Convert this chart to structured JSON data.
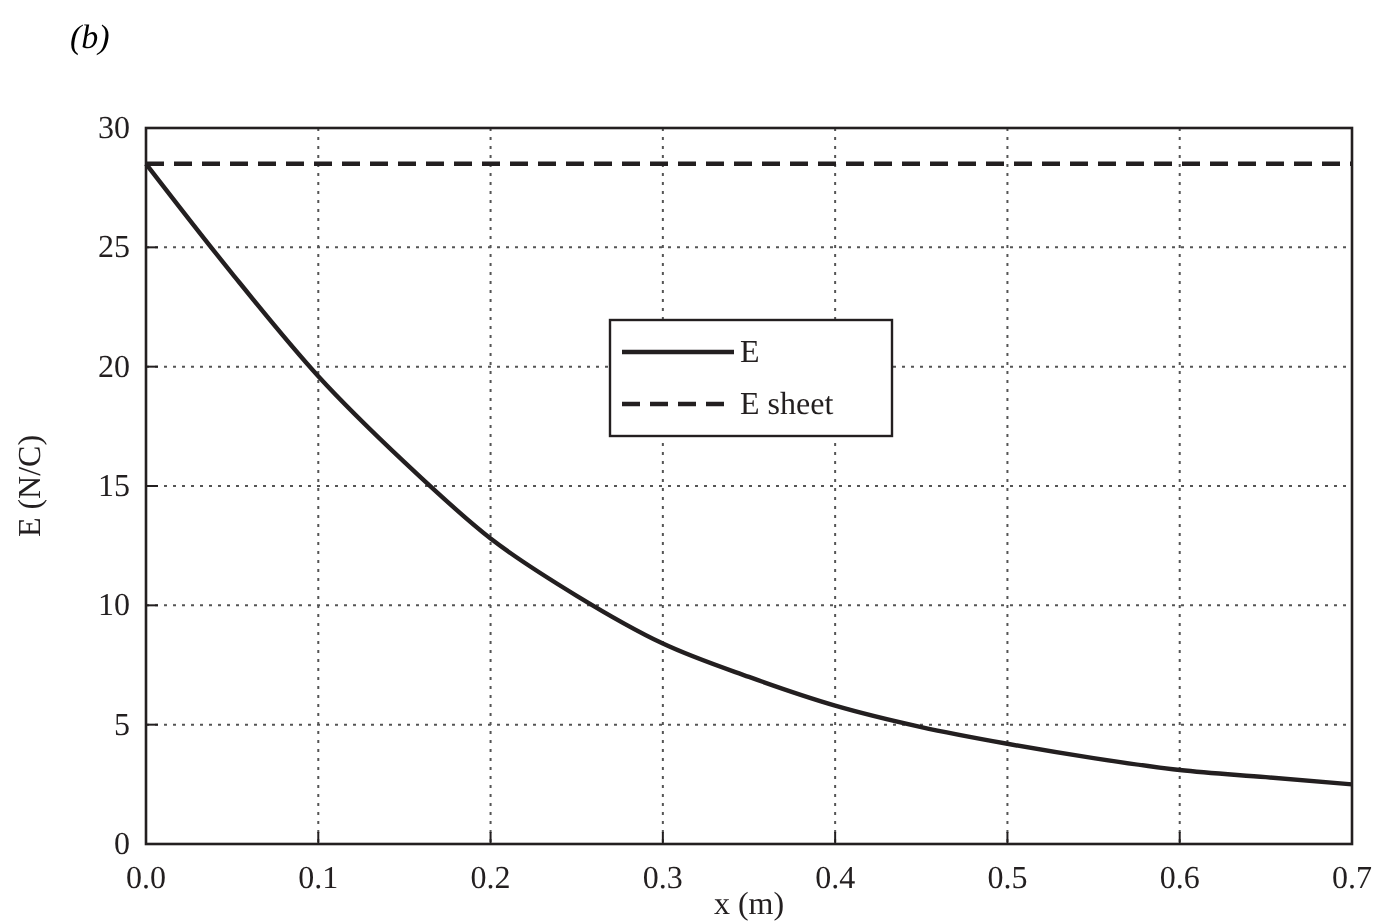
{
  "chart_data": {
    "type": "line",
    "title": "(b)",
    "xlabel": "x (m)",
    "ylabel": "E (N/C)",
    "xlim": [
      0,
      0.7
    ],
    "xticks": [
      {
        "value": 0,
        "label": "0.0"
      },
      0.1,
      0.2,
      0.3,
      0.4,
      0.5,
      0.6,
      0.7
    ],
    "ylim": [
      0,
      30
    ],
    "yticks": [
      0,
      5,
      10,
      15,
      20,
      25,
      30
    ],
    "grid": true,
    "legend": "center",
    "marker": "none",
    "series": [
      {
        "name": "E",
        "color": "#231f20",
        "line_style": "solid",
        "x": [
          0,
          0.05,
          0.1,
          0.15,
          0.2,
          0.25,
          0.3,
          0.35,
          0.4,
          0.45,
          0.5,
          0.55,
          0.6,
          0.65,
          0.7
        ],
        "values": [
          28.5,
          23.9,
          19.6,
          16.0,
          12.8,
          10.4,
          8.4,
          7.0,
          5.8,
          4.9,
          4.2,
          3.6,
          3.1,
          2.8,
          2.5
        ]
      },
      {
        "name": "E sheet",
        "color": "#231f20",
        "line_style": "dashed",
        "x": [
          0,
          0.7
        ],
        "values": [
          28.5,
          28.5
        ]
      }
    ]
  }
}
